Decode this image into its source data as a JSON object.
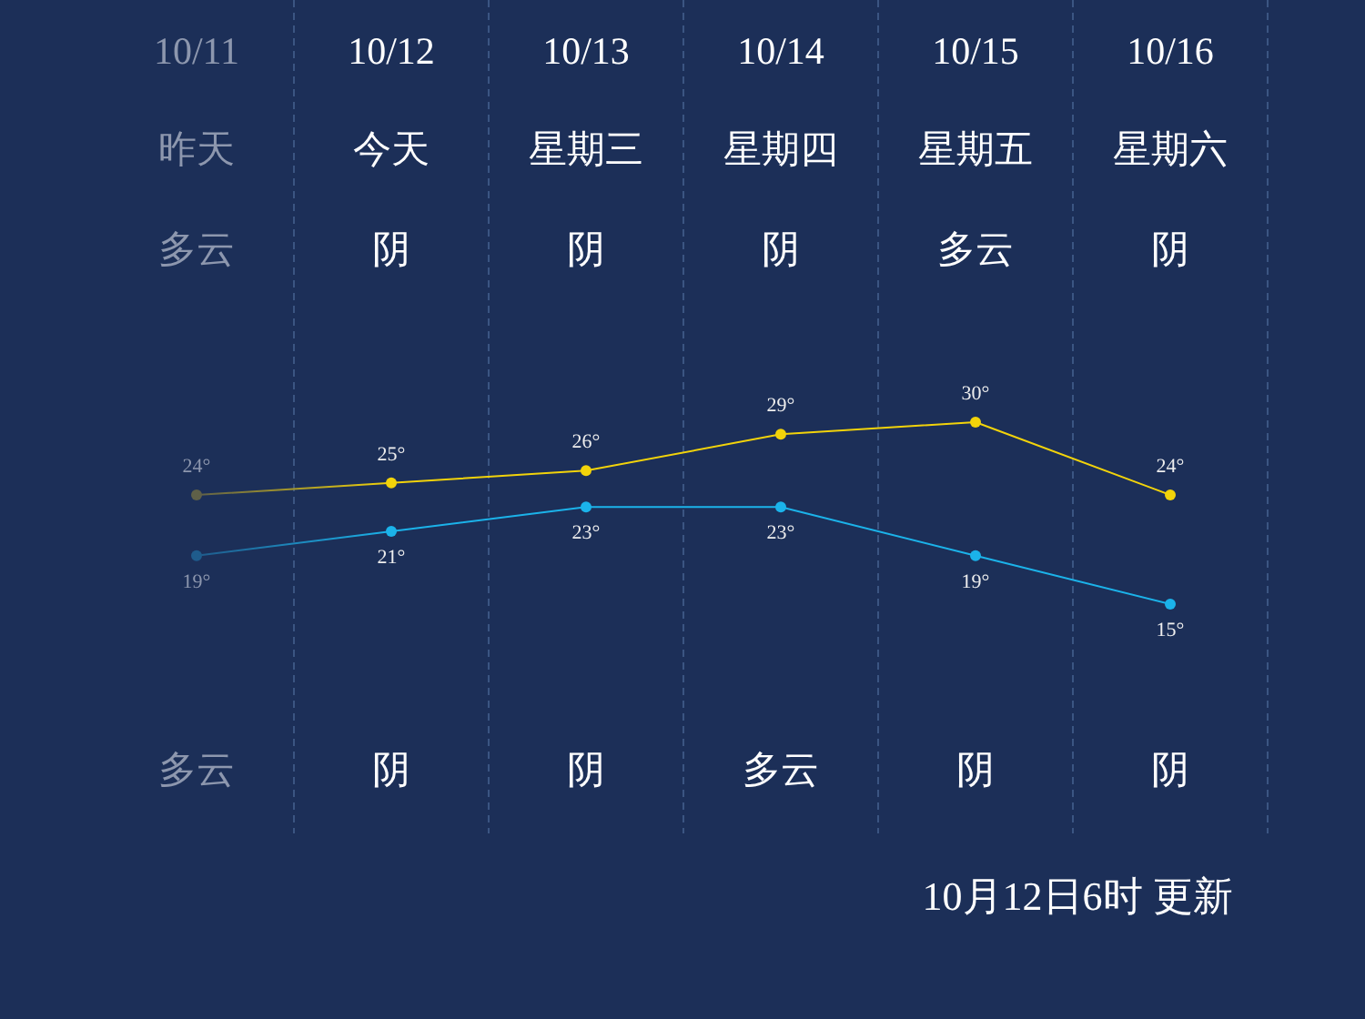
{
  "chart_data": {
    "type": "line",
    "categories": [
      "10/11",
      "10/12",
      "10/13",
      "10/14",
      "10/15",
      "10/16"
    ],
    "series": [
      {
        "colors": [
          "#5f6048",
          "#f2d30a",
          "#f2d30a",
          "#f2d30a",
          "#f2d30a",
          "#f2d30a"
        ],
        "values": [
          24,
          25,
          26,
          29,
          30,
          24
        ],
        "value_labels": [
          "24°",
          "25°",
          "26°",
          "29°",
          "30°",
          "24°"
        ]
      },
      {
        "colors": [
          "#1f5c8c",
          "#1bb3ea",
          "#1bb3ea",
          "#1bb3ea",
          "#1bb3ea",
          "#1bb3ea"
        ],
        "values": [
          19,
          21,
          23,
          23,
          19,
          15
        ],
        "value_labels": [
          "19°",
          "21°",
          "23°",
          "23°",
          "19°",
          "15°"
        ]
      }
    ],
    "marker": "circle",
    "grid": "x",
    "annotations": [
      "昨天",
      "今天",
      "星期三",
      "星期四",
      "星期五",
      "星期六",
      "多云",
      "阴",
      "阴",
      "阴",
      "多云",
      "阴",
      "多云",
      "阴",
      "阴",
      "多云",
      "阴",
      "阴",
      "10月12日6时 更新"
    ]
  }
}
